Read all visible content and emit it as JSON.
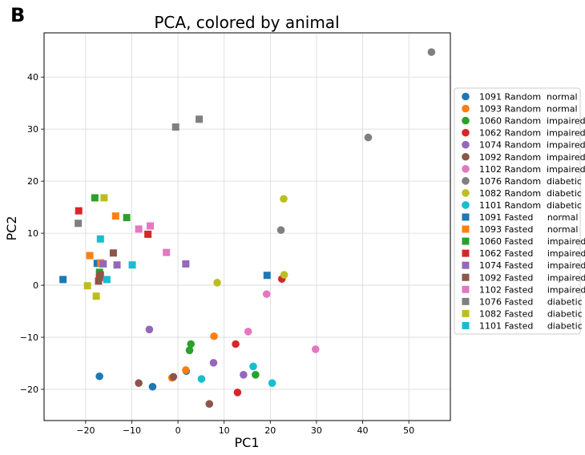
{
  "panel_label": "B",
  "chart_data": {
    "type": "scatter",
    "title": "PCA, colored by animal",
    "xlabel": "PC1",
    "ylabel": "PC2",
    "xlim": [
      -29,
      59
    ],
    "ylim": [
      -26,
      48.5
    ],
    "xticks": [
      -20,
      -10,
      0,
      10,
      20,
      30,
      40,
      50
    ],
    "yticks": [
      -20,
      -10,
      0,
      10,
      20,
      30,
      40
    ],
    "grid": true,
    "legend_position": "center-right-outside",
    "series": [
      {
        "name": "1091 Random  normal",
        "color": "#1f77b4",
        "marker": "circle",
        "points": [
          [
            -17,
            -17.5
          ],
          [
            -5.5,
            -19.5
          ],
          [
            1.8,
            -16.5
          ]
        ]
      },
      {
        "name": "1093 Random  normal",
        "color": "#ff7f0e",
        "marker": "circle",
        "points": [
          [
            1.7,
            -16.3
          ],
          [
            -1.3,
            -17.8
          ],
          [
            7.8,
            -9.8
          ]
        ]
      },
      {
        "name": "1060 Random  impaired",
        "color": "#2ca02c",
        "marker": "circle",
        "points": [
          [
            2.8,
            -11.3
          ],
          [
            2.5,
            -12.5
          ],
          [
            16.8,
            -17.2
          ]
        ]
      },
      {
        "name": "1062 Random  impaired",
        "color": "#d62728",
        "marker": "circle",
        "points": [
          [
            12.5,
            -11.3
          ],
          [
            12.9,
            -20.6
          ],
          [
            22.5,
            1.2
          ]
        ]
      },
      {
        "name": "1074 Random  impaired",
        "color": "#9467bd",
        "marker": "circle",
        "points": [
          [
            -6.2,
            -8.5
          ],
          [
            7.7,
            -14.9
          ],
          [
            14.2,
            -17.2
          ]
        ]
      },
      {
        "name": "1092 Random  impaired",
        "color": "#8c564b",
        "marker": "circle",
        "points": [
          [
            -8.5,
            -18.8
          ],
          [
            -1.0,
            -17.6
          ],
          [
            6.8,
            -22.8
          ]
        ]
      },
      {
        "name": "1102 Random  impaired",
        "color": "#e377c2",
        "marker": "circle",
        "points": [
          [
            15.2,
            -8.9
          ],
          [
            19.2,
            -1.7
          ],
          [
            29.8,
            -12.3
          ]
        ]
      },
      {
        "name": "1076 Random  diabetic",
        "color": "#7f7f7f",
        "marker": "circle",
        "points": [
          [
            22.3,
            10.6
          ],
          [
            41.2,
            28.4
          ],
          [
            54.9,
            44.8
          ]
        ]
      },
      {
        "name": "1082 Random  diabetic",
        "color": "#bcbd22",
        "marker": "circle",
        "points": [
          [
            8.5,
            0.5
          ],
          [
            22.9,
            16.6
          ],
          [
            23.0,
            2.0
          ]
        ]
      },
      {
        "name": "1101 Random  diabetic",
        "color": "#17becf",
        "marker": "circle",
        "points": [
          [
            5.1,
            -18.0
          ],
          [
            16.3,
            -15.6
          ],
          [
            20.4,
            -18.8
          ]
        ]
      },
      {
        "name": "1091 Fasted     normal",
        "color": "#1f77b4",
        "marker": "square",
        "points": [
          [
            -24.9,
            1.1
          ],
          [
            -17.5,
            4.2
          ],
          [
            19.3,
            1.9
          ]
        ]
      },
      {
        "name": "1093 Fasted     normal",
        "color": "#ff7f0e",
        "marker": "square",
        "points": [
          [
            -19.1,
            5.7
          ],
          [
            -13.5,
            13.3
          ],
          [
            -16.7,
            4.3
          ]
        ]
      },
      {
        "name": "1060 Fasted     impaired",
        "color": "#2ca02c",
        "marker": "square",
        "points": [
          [
            -18.0,
            16.8
          ],
          [
            -11.1,
            13.0
          ],
          [
            -17.0,
            2.5
          ]
        ]
      },
      {
        "name": "1062 Fasted     impaired",
        "color": "#d62728",
        "marker": "square",
        "points": [
          [
            -21.5,
            14.3
          ],
          [
            -6.5,
            9.8
          ],
          [
            -17.0,
            1.5
          ]
        ]
      },
      {
        "name": "1074 Fasted     impaired",
        "color": "#9467bd",
        "marker": "square",
        "points": [
          [
            -16.2,
            4.1
          ],
          [
            -13.2,
            3.9
          ],
          [
            1.7,
            4.1
          ]
        ]
      },
      {
        "name": "1092 Fasted     impaired",
        "color": "#8c564b",
        "marker": "square",
        "points": [
          [
            -14.0,
            6.2
          ],
          [
            -17.2,
            0.8
          ],
          [
            -16.8,
            2.0
          ]
        ]
      },
      {
        "name": "1102 Fasted     impaired",
        "color": "#e377c2",
        "marker": "square",
        "points": [
          [
            -8.5,
            10.8
          ],
          [
            -6.0,
            11.4
          ],
          [
            -2.5,
            6.3
          ]
        ]
      },
      {
        "name": "1076 Fasted     diabetic",
        "color": "#7f7f7f",
        "marker": "square",
        "points": [
          [
            -21.6,
            11.9
          ],
          [
            -0.5,
            30.4
          ],
          [
            4.6,
            31.9
          ]
        ]
      },
      {
        "name": "1082 Fasted     diabetic",
        "color": "#bcbd22",
        "marker": "square",
        "points": [
          [
            -19.6,
            -0.1
          ],
          [
            -17.7,
            -2.1
          ],
          [
            -16.0,
            16.8
          ]
        ]
      },
      {
        "name": "1101 Fasted     diabetic",
        "color": "#17becf",
        "marker": "square",
        "points": [
          [
            -16.8,
            8.9
          ],
          [
            -15.4,
            1.1
          ],
          [
            -9.9,
            3.9
          ]
        ]
      }
    ]
  }
}
